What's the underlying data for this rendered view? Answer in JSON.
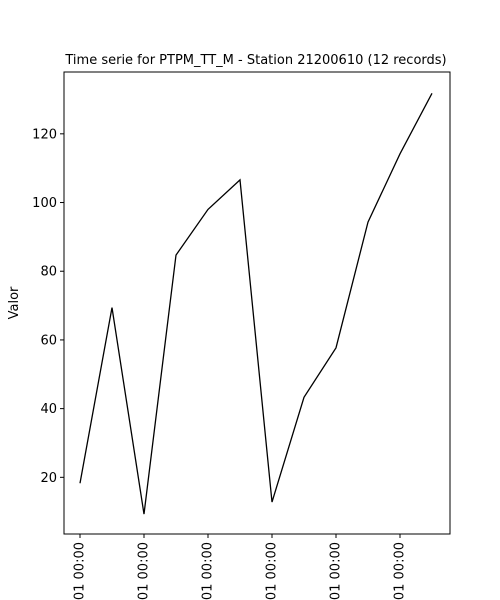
{
  "chart_data": {
    "type": "line",
    "title": "Time serie for PTPM_TT_M - Station 21200610 (12 records)",
    "xlabel": "",
    "ylabel": "Valor",
    "x_tick_labels": [
      "01 00:00",
      "01 00:00",
      "01 00:00",
      "01 00:00",
      "01 00:00",
      "01 00:00"
    ],
    "y_ticks": [
      20,
      40,
      60,
      80,
      100,
      120
    ],
    "ylim": [
      3.5,
      138
    ],
    "grid": false,
    "line_color": "#000000",
    "series": [
      {
        "values": [
          18.3,
          69.4,
          9.3,
          84.7,
          98.0,
          106.6,
          12.8,
          43.3,
          57.7,
          94.3,
          114.2,
          131.8
        ]
      }
    ]
  }
}
